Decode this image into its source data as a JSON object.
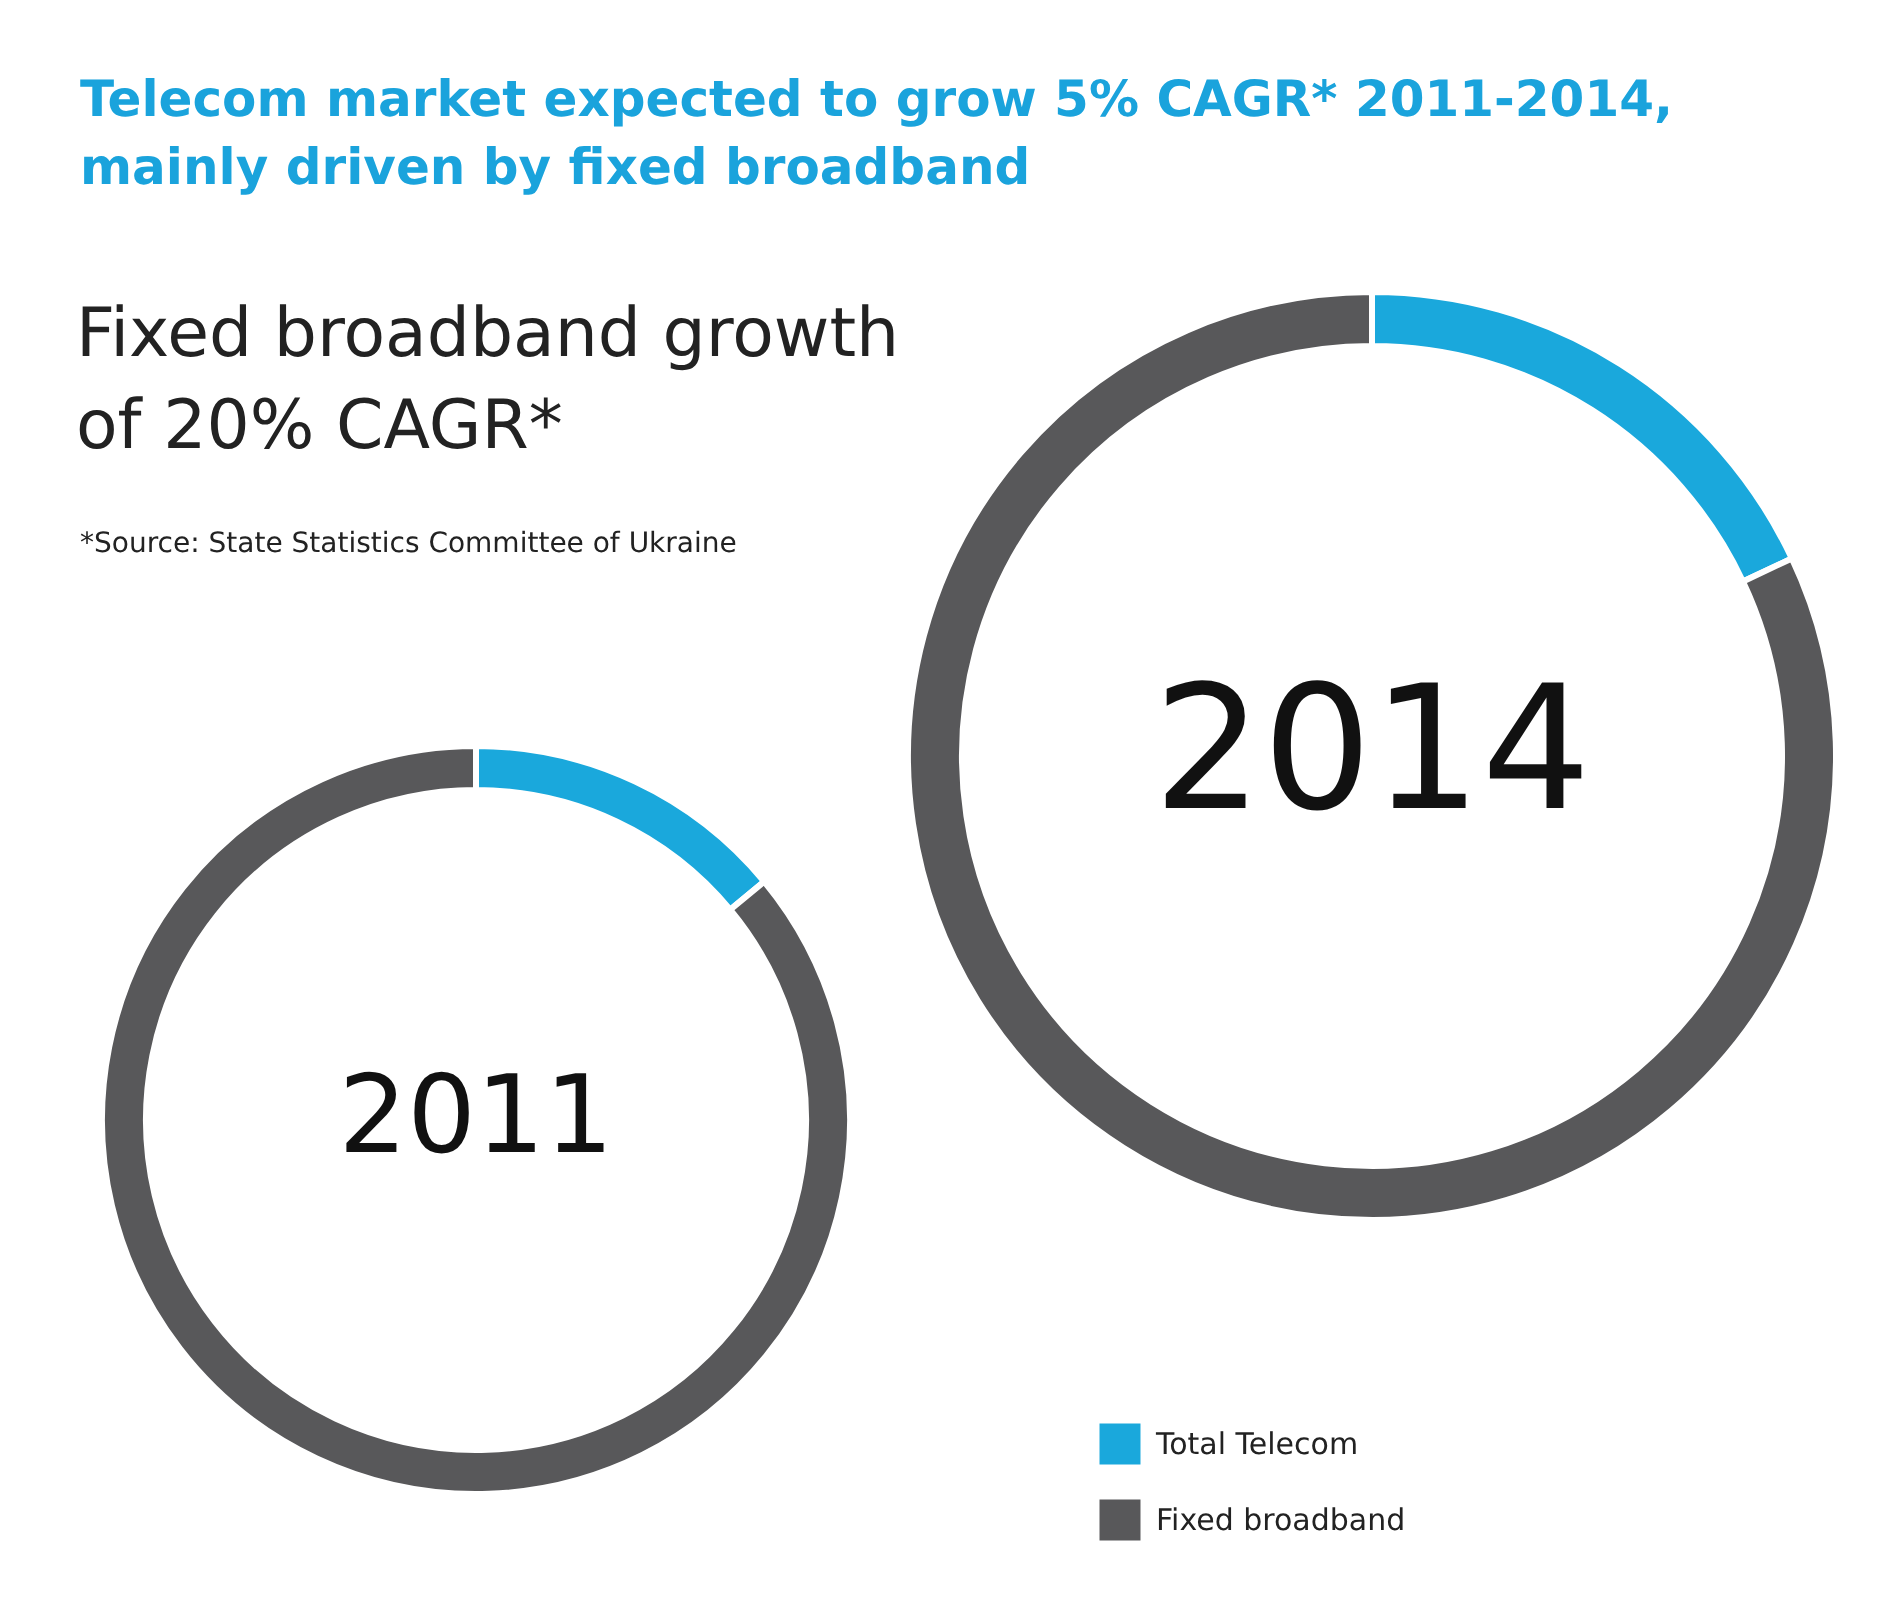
{
  "chart_data": {
    "type": "donut",
    "title": "Telecom market expected to grow 5% CAGR* 2011-2014, mainly driven by fixed broadband",
    "subtitle": "Fixed broadband growth of 20% CAGR*",
    "annotations": [
      "*Source: State Statistics Committee of Ukraine"
    ],
    "categories": [
      "Total Telecom",
      "Fixed broadband"
    ],
    "colors": [
      "#1aa8dc",
      "#58585a"
    ],
    "legend": "bottom right",
    "series": [
      {
        "name": "2011",
        "values": [
          14,
          86
        ]
      },
      {
        "name": "2014",
        "values": [
          18,
          82
        ]
      }
    ]
  }
}
